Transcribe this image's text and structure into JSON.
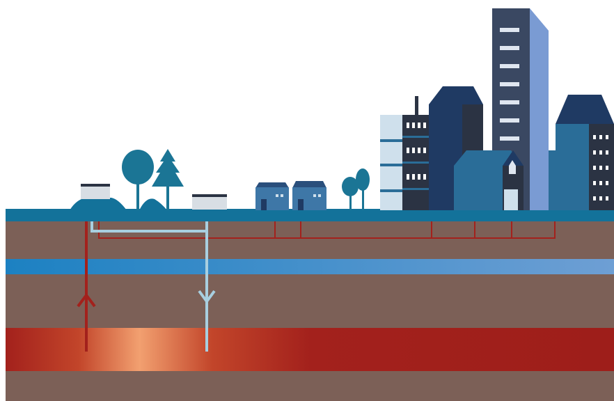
{
  "colors": {
    "sky": "#ffffff",
    "ground_surface": "#13729a",
    "soil": "#7c6057",
    "aquifer_start": "#1c81c2",
    "aquifer_end": "#6e9fd4",
    "hot_layer": "#a3211c",
    "hot_glow": "#f2a070",
    "pipe_hot": "#a3211c",
    "pipe_cold": "#a8cfe0",
    "building_navy": "#1f3a63",
    "building_dark": "#2b3343",
    "building_blue": "#2a6d98",
    "building_light": "#cfe0ec",
    "tower_face": "#3a4862",
    "tower_side": "#7a9bd3",
    "tree": "#1b7595",
    "house": "#3e77a7"
  },
  "icons": [
    "production-well-icon",
    "injection-well-icon",
    "tree-icon",
    "house-icon",
    "apartment-building-icon",
    "skyscraper-icon"
  ],
  "flow": {
    "production_well": "up",
    "injection_well": "down"
  }
}
